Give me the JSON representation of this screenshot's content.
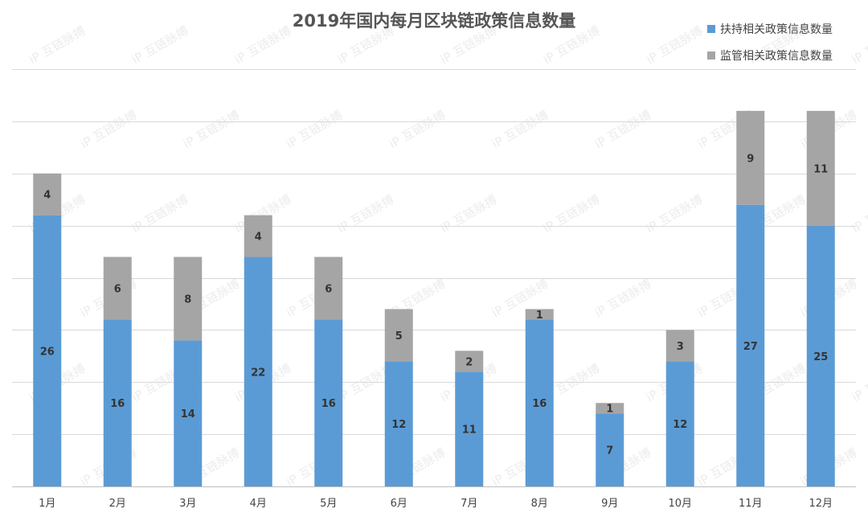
{
  "chart_data": {
    "type": "bar",
    "stacked": true,
    "title": "2019年国内每月区块链政策信息数量",
    "categories": [
      "1月",
      "2月",
      "3月",
      "4月",
      "5月",
      "6月",
      "7月",
      "8月",
      "9月",
      "10月",
      "11月",
      "12月"
    ],
    "series": [
      {
        "name": "扶持相关政策信息数量",
        "color": "#5b9bd5",
        "values": [
          26,
          16,
          14,
          22,
          16,
          12,
          11,
          16,
          7,
          12,
          27,
          25
        ]
      },
      {
        "name": "监管相关政策信息数量",
        "color": "#a5a5a5",
        "values": [
          4,
          6,
          8,
          4,
          6,
          5,
          2,
          1,
          1,
          3,
          9,
          11
        ]
      }
    ],
    "ylim": [
      0,
      40
    ],
    "y_gridline_step": 5,
    "y_tick_labels_shown": false,
    "grid": true,
    "legend_position": "top-right",
    "xlabel": "",
    "ylabel": ""
  },
  "watermark": "互链脉搏"
}
